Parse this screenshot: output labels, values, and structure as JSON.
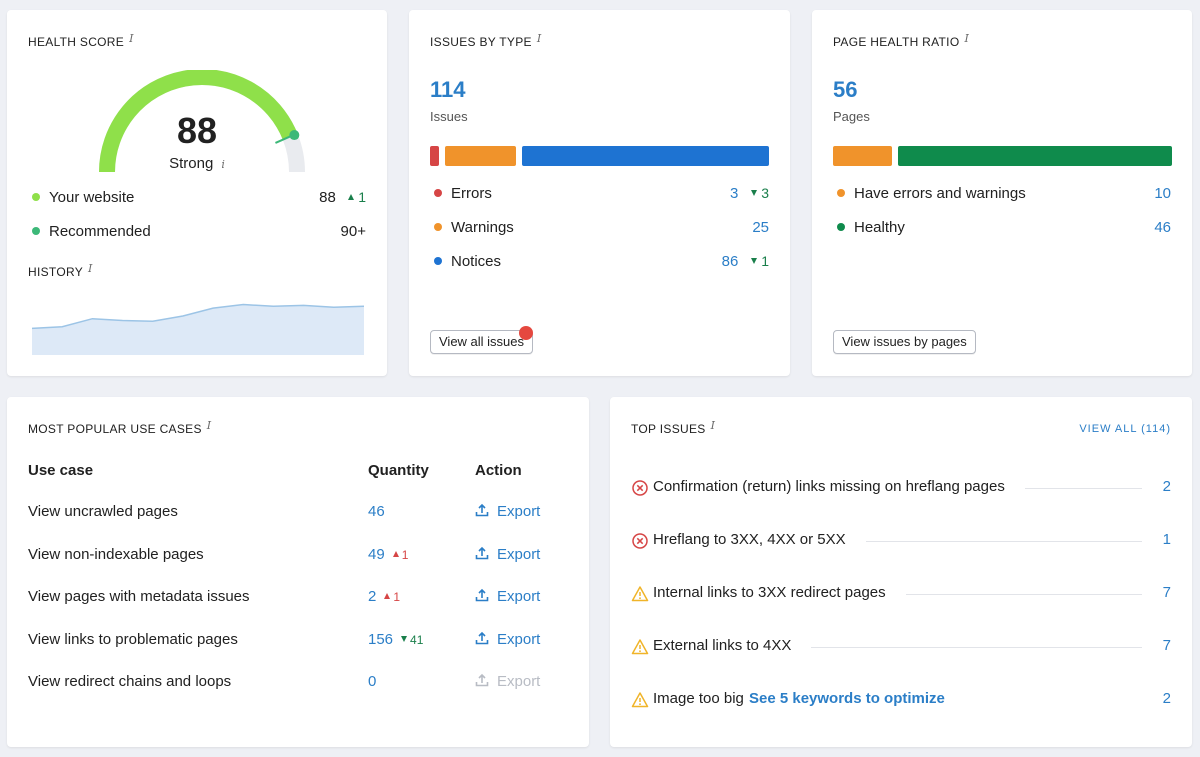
{
  "health": {
    "title": "HEALTH SCORE",
    "score": "88",
    "status": "Strong",
    "score_fraction": 0.88,
    "your_website_label": "Your website",
    "your_website_value": "88",
    "your_website_delta": "1",
    "recommended_label": "Recommended",
    "recommended_value": "90+",
    "history_title": "HISTORY",
    "colors": {
      "gauge": "#8fe04a",
      "your_website_dot": "#8fe04a",
      "recommended_dot": "#3cb878",
      "history_fill": "#dde9f7",
      "history_line": "#9cc4e6"
    },
    "history_values": [
      30,
      32,
      41,
      39,
      38,
      44,
      53,
      57,
      55,
      56,
      54,
      55
    ]
  },
  "issues_by_type": {
    "title": "ISSUES BY TYPE",
    "total": "114",
    "total_label": "Issues",
    "bar": [
      {
        "name": "Errors",
        "value": 3,
        "color": "#d64545"
      },
      {
        "name": "Warnings",
        "value": 25,
        "color": "#f0932b"
      },
      {
        "name": "Notices",
        "value": 86,
        "color": "#1e73d2"
      }
    ],
    "errors_label": "Errors",
    "errors_value": "3",
    "errors_delta": "3",
    "warnings_label": "Warnings",
    "warnings_value": "25",
    "notices_label": "Notices",
    "notices_value": "86",
    "notices_delta": "1",
    "button": "View all issues",
    "badge_color": "#e5483f"
  },
  "page_health": {
    "title": "PAGE HEALTH RATIO",
    "total": "56",
    "total_label": "Pages",
    "bar": [
      {
        "name": "Have errors and warnings",
        "value": 10,
        "color": "#f0932b"
      },
      {
        "name": "Healthy",
        "value": 46,
        "color": "#0f8b4c"
      }
    ],
    "errors_label": "Have errors and warnings",
    "errors_value": "10",
    "healthy_label": "Healthy",
    "healthy_value": "46",
    "button": "View issues by pages"
  },
  "use_cases": {
    "title": "MOST POPULAR USE CASES",
    "col_use_case": "Use case",
    "col_quantity": "Quantity",
    "col_action": "Action",
    "rows": [
      {
        "label": "View uncrawled pages",
        "qty": "46",
        "delta": "",
        "delta_dir": "",
        "action": "Export",
        "enabled": true
      },
      {
        "label": "View non-indexable pages",
        "qty": "49",
        "delta": "1",
        "delta_dir": "up-red",
        "action": "Export",
        "enabled": true
      },
      {
        "label": "View pages with metadata issues",
        "qty": "2",
        "delta": "1",
        "delta_dir": "up-red",
        "action": "Export",
        "enabled": true
      },
      {
        "label": "View links to problematic pages",
        "qty": "156",
        "delta": "41",
        "delta_dir": "down-green",
        "action": "Export",
        "enabled": true
      },
      {
        "label": "View redirect chains and loops",
        "qty": "0",
        "delta": "",
        "delta_dir": "",
        "action": "Export",
        "enabled": false
      }
    ]
  },
  "top_issues": {
    "title": "TOP ISSUES",
    "view_all": "VIEW ALL (114)",
    "items": [
      {
        "icon": "error-circle-icon",
        "text": "Confirmation (return) links missing on hreflang pages",
        "link": "",
        "count": "2"
      },
      {
        "icon": "error-circle-icon",
        "text": "Hreflang to 3XX, 4XX or 5XX",
        "link": "",
        "count": "1"
      },
      {
        "icon": "warning-triangle-icon",
        "text": "Internal links to 3XX redirect pages",
        "link": "",
        "count": "7"
      },
      {
        "icon": "warning-triangle-icon",
        "text": "External links to 4XX",
        "link": "",
        "count": "7"
      },
      {
        "icon": "warning-triangle-icon",
        "text": "Image too big",
        "link": "See 5 keywords to optimize",
        "count": "2"
      }
    ]
  }
}
